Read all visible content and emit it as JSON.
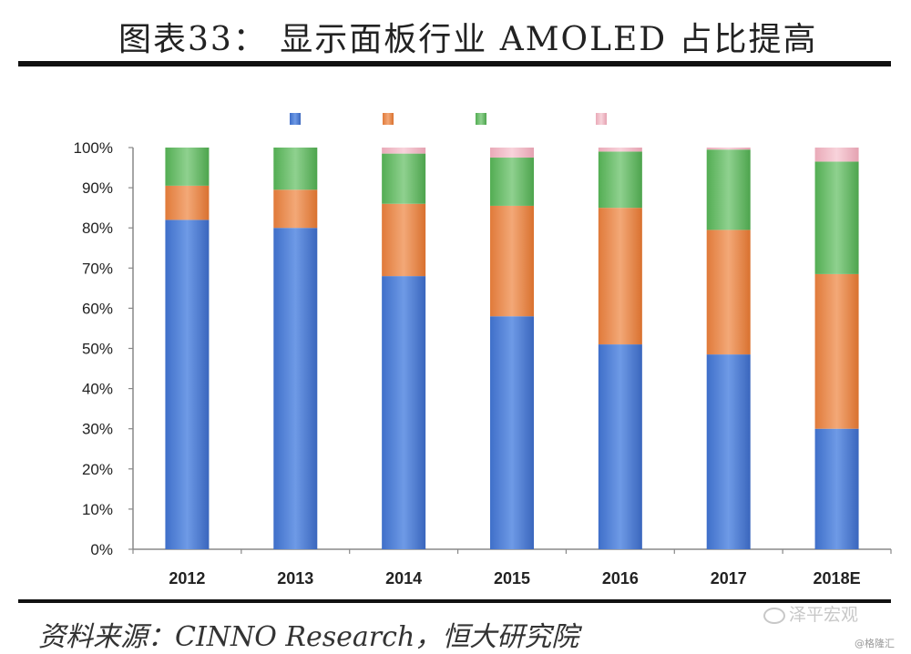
{
  "header": {
    "title": "图表33： 显示面板行业 AMOLED 占比提高"
  },
  "footer": {
    "source": "资料来源：CINNO Research，恒大研究院",
    "watermark_main": "泽平宏观",
    "watermark_sub": "@格隆汇"
  },
  "chart_data": {
    "type": "bar",
    "stacked": true,
    "categories": [
      "2012",
      "2013",
      "2014",
      "2015",
      "2016",
      "2017",
      "2018E"
    ],
    "y_ticks": [
      "0%",
      "10%",
      "20%",
      "30%",
      "40%",
      "50%",
      "60%",
      "70%",
      "80%",
      "90%",
      "100%"
    ],
    "ylim": [
      0,
      100
    ],
    "legend_position": "top",
    "series": [
      {
        "color": "#4472C4",
        "values": [
          82,
          80,
          68,
          58,
          51,
          48.5,
          30
        ]
      },
      {
        "color": "#ED7D31",
        "values": [
          8.5,
          9.5,
          18,
          27.5,
          34,
          31,
          38.5
        ]
      },
      {
        "color": "#5CB85C",
        "values": [
          9.5,
          10.5,
          12.5,
          12,
          14,
          20,
          28
        ]
      },
      {
        "color": "#F4B6C2",
        "values": [
          0,
          0,
          1.5,
          2.5,
          1,
          0.5,
          3.5
        ]
      }
    ]
  }
}
